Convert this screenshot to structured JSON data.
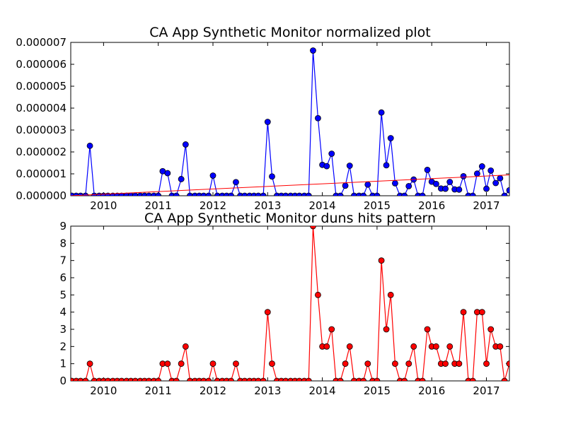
{
  "chart_data": [
    {
      "type": "line",
      "title": "CA App Synthetic Monitor normalized plot",
      "xlabel": "",
      "ylabel": "",
      "xlim": [
        2009.4,
        2017.42
      ],
      "ylim": [
        0,
        7e-06
      ],
      "x_ticks": [
        "2010",
        "2011",
        "2012",
        "2013",
        "2014",
        "2015",
        "2016",
        "2017"
      ],
      "y_ticks": [
        "0.000000",
        "0.000001",
        "0.000002",
        "0.000003",
        "0.000004",
        "0.000005",
        "0.000006",
        "0.000007"
      ],
      "x": [
        2009.42,
        2009.5,
        2009.58,
        2009.67,
        2009.75,
        2009.83,
        2009.92,
        2010.0,
        2010.08,
        2010.17,
        2010.25,
        2010.33,
        2010.42,
        2010.5,
        2010.58,
        2010.67,
        2010.75,
        2010.83,
        2010.92,
        2011.0,
        2011.08,
        2011.17,
        2011.25,
        2011.33,
        2011.42,
        2011.5,
        2011.58,
        2011.67,
        2011.75,
        2011.83,
        2011.92,
        2012.0,
        2012.08,
        2012.17,
        2012.25,
        2012.33,
        2012.42,
        2012.5,
        2012.58,
        2012.67,
        2012.75,
        2012.83,
        2012.92,
        2013.0,
        2013.08,
        2013.17,
        2013.25,
        2013.33,
        2013.42,
        2013.5,
        2013.58,
        2013.67,
        2013.75,
        2013.83,
        2013.92,
        2014.0,
        2014.08,
        2014.17,
        2014.25,
        2014.33,
        2014.42,
        2014.5,
        2014.58,
        2014.67,
        2014.75,
        2014.83,
        2014.92,
        2015.0,
        2015.08,
        2015.17,
        2015.25,
        2015.33,
        2015.42,
        2015.5,
        2015.58,
        2015.67,
        2015.75,
        2015.83,
        2015.92,
        2016.0,
        2016.08,
        2016.17,
        2016.25,
        2016.33,
        2016.42,
        2016.5,
        2016.58,
        2016.67,
        2016.75,
        2016.83,
        2016.92,
        2017.0,
        2017.08,
        2017.17,
        2017.25,
        2017.33,
        2017.42
      ],
      "series": [
        {
          "color": "#0000ff",
          "marker": "circle",
          "values": [
            0,
            0,
            0,
            0,
            2.28e-06,
            0,
            0,
            0,
            0,
            0,
            0,
            0,
            0,
            0,
            0,
            0,
            0,
            0,
            0,
            0,
            1.12e-06,
            1.03e-06,
            0,
            0,
            7.6e-07,
            2.34e-06,
            0,
            0,
            0,
            0,
            0,
            9.2e-07,
            0,
            0,
            0,
            0,
            6.2e-07,
            0,
            0,
            0,
            0,
            0,
            0,
            3.37e-06,
            8.8e-07,
            0,
            0,
            0,
            0,
            0,
            0,
            0,
            0,
            6.63e-06,
            3.54e-06,
            1.41e-06,
            1.35e-06,
            1.92e-06,
            0,
            0,
            4.6e-07,
            1.37e-06,
            0,
            0,
            0,
            5.1e-07,
            0,
            0,
            3.8e-06,
            1.39e-06,
            2.63e-06,
            5.7e-07,
            0,
            0,
            4.4e-07,
            7.4e-07,
            0,
            0,
            1.18e-06,
            6.4e-07,
            5.4e-07,
            3.3e-07,
            3.2e-07,
            6.3e-07,
            2.9e-07,
            2.8e-07,
            8.9e-07,
            0,
            0,
            1.01e-06,
            1.34e-06,
            3.2e-07,
            1.15e-06,
            5.8e-07,
            8e-07,
            0,
            2.5e-07
          ]
        },
        {
          "color": "#ff0000",
          "marker": "none",
          "trend": true,
          "values_range": [
            0.0,
            9.5e-07
          ]
        }
      ]
    },
    {
      "type": "line",
      "title": "CA App Synthetic Monitor duns hits pattern",
      "xlabel": "",
      "ylabel": "",
      "xlim": [
        2009.4,
        2017.42
      ],
      "ylim": [
        0,
        9
      ],
      "x_ticks": [
        "2010",
        "2011",
        "2012",
        "2013",
        "2014",
        "2015",
        "2016",
        "2017"
      ],
      "y_ticks": [
        "0",
        "1",
        "2",
        "3",
        "4",
        "5",
        "6",
        "7",
        "8",
        "9"
      ],
      "series": [
        {
          "color": "#ff0000",
          "marker": "circle",
          "values": [
            0,
            0,
            0,
            0,
            1,
            0,
            0,
            0,
            0,
            0,
            0,
            0,
            0,
            0,
            0,
            0,
            0,
            0,
            0,
            0,
            1,
            1,
            0,
            0,
            1,
            2,
            0,
            0,
            0,
            0,
            0,
            1,
            0,
            0,
            0,
            0,
            1,
            0,
            0,
            0,
            0,
            0,
            0,
            4,
            1,
            0,
            0,
            0,
            0,
            0,
            0,
            0,
            0,
            9,
            5,
            2,
            2,
            3,
            0,
            0,
            1,
            2,
            0,
            0,
            0,
            1,
            0,
            0,
            7,
            3,
            5,
            1,
            0,
            0,
            1,
            2,
            0,
            0,
            3,
            2,
            2,
            1,
            1,
            2,
            1,
            1,
            4,
            0,
            0,
            4,
            4,
            1,
            3,
            2,
            2,
            0,
            1
          ]
        }
      ]
    }
  ]
}
